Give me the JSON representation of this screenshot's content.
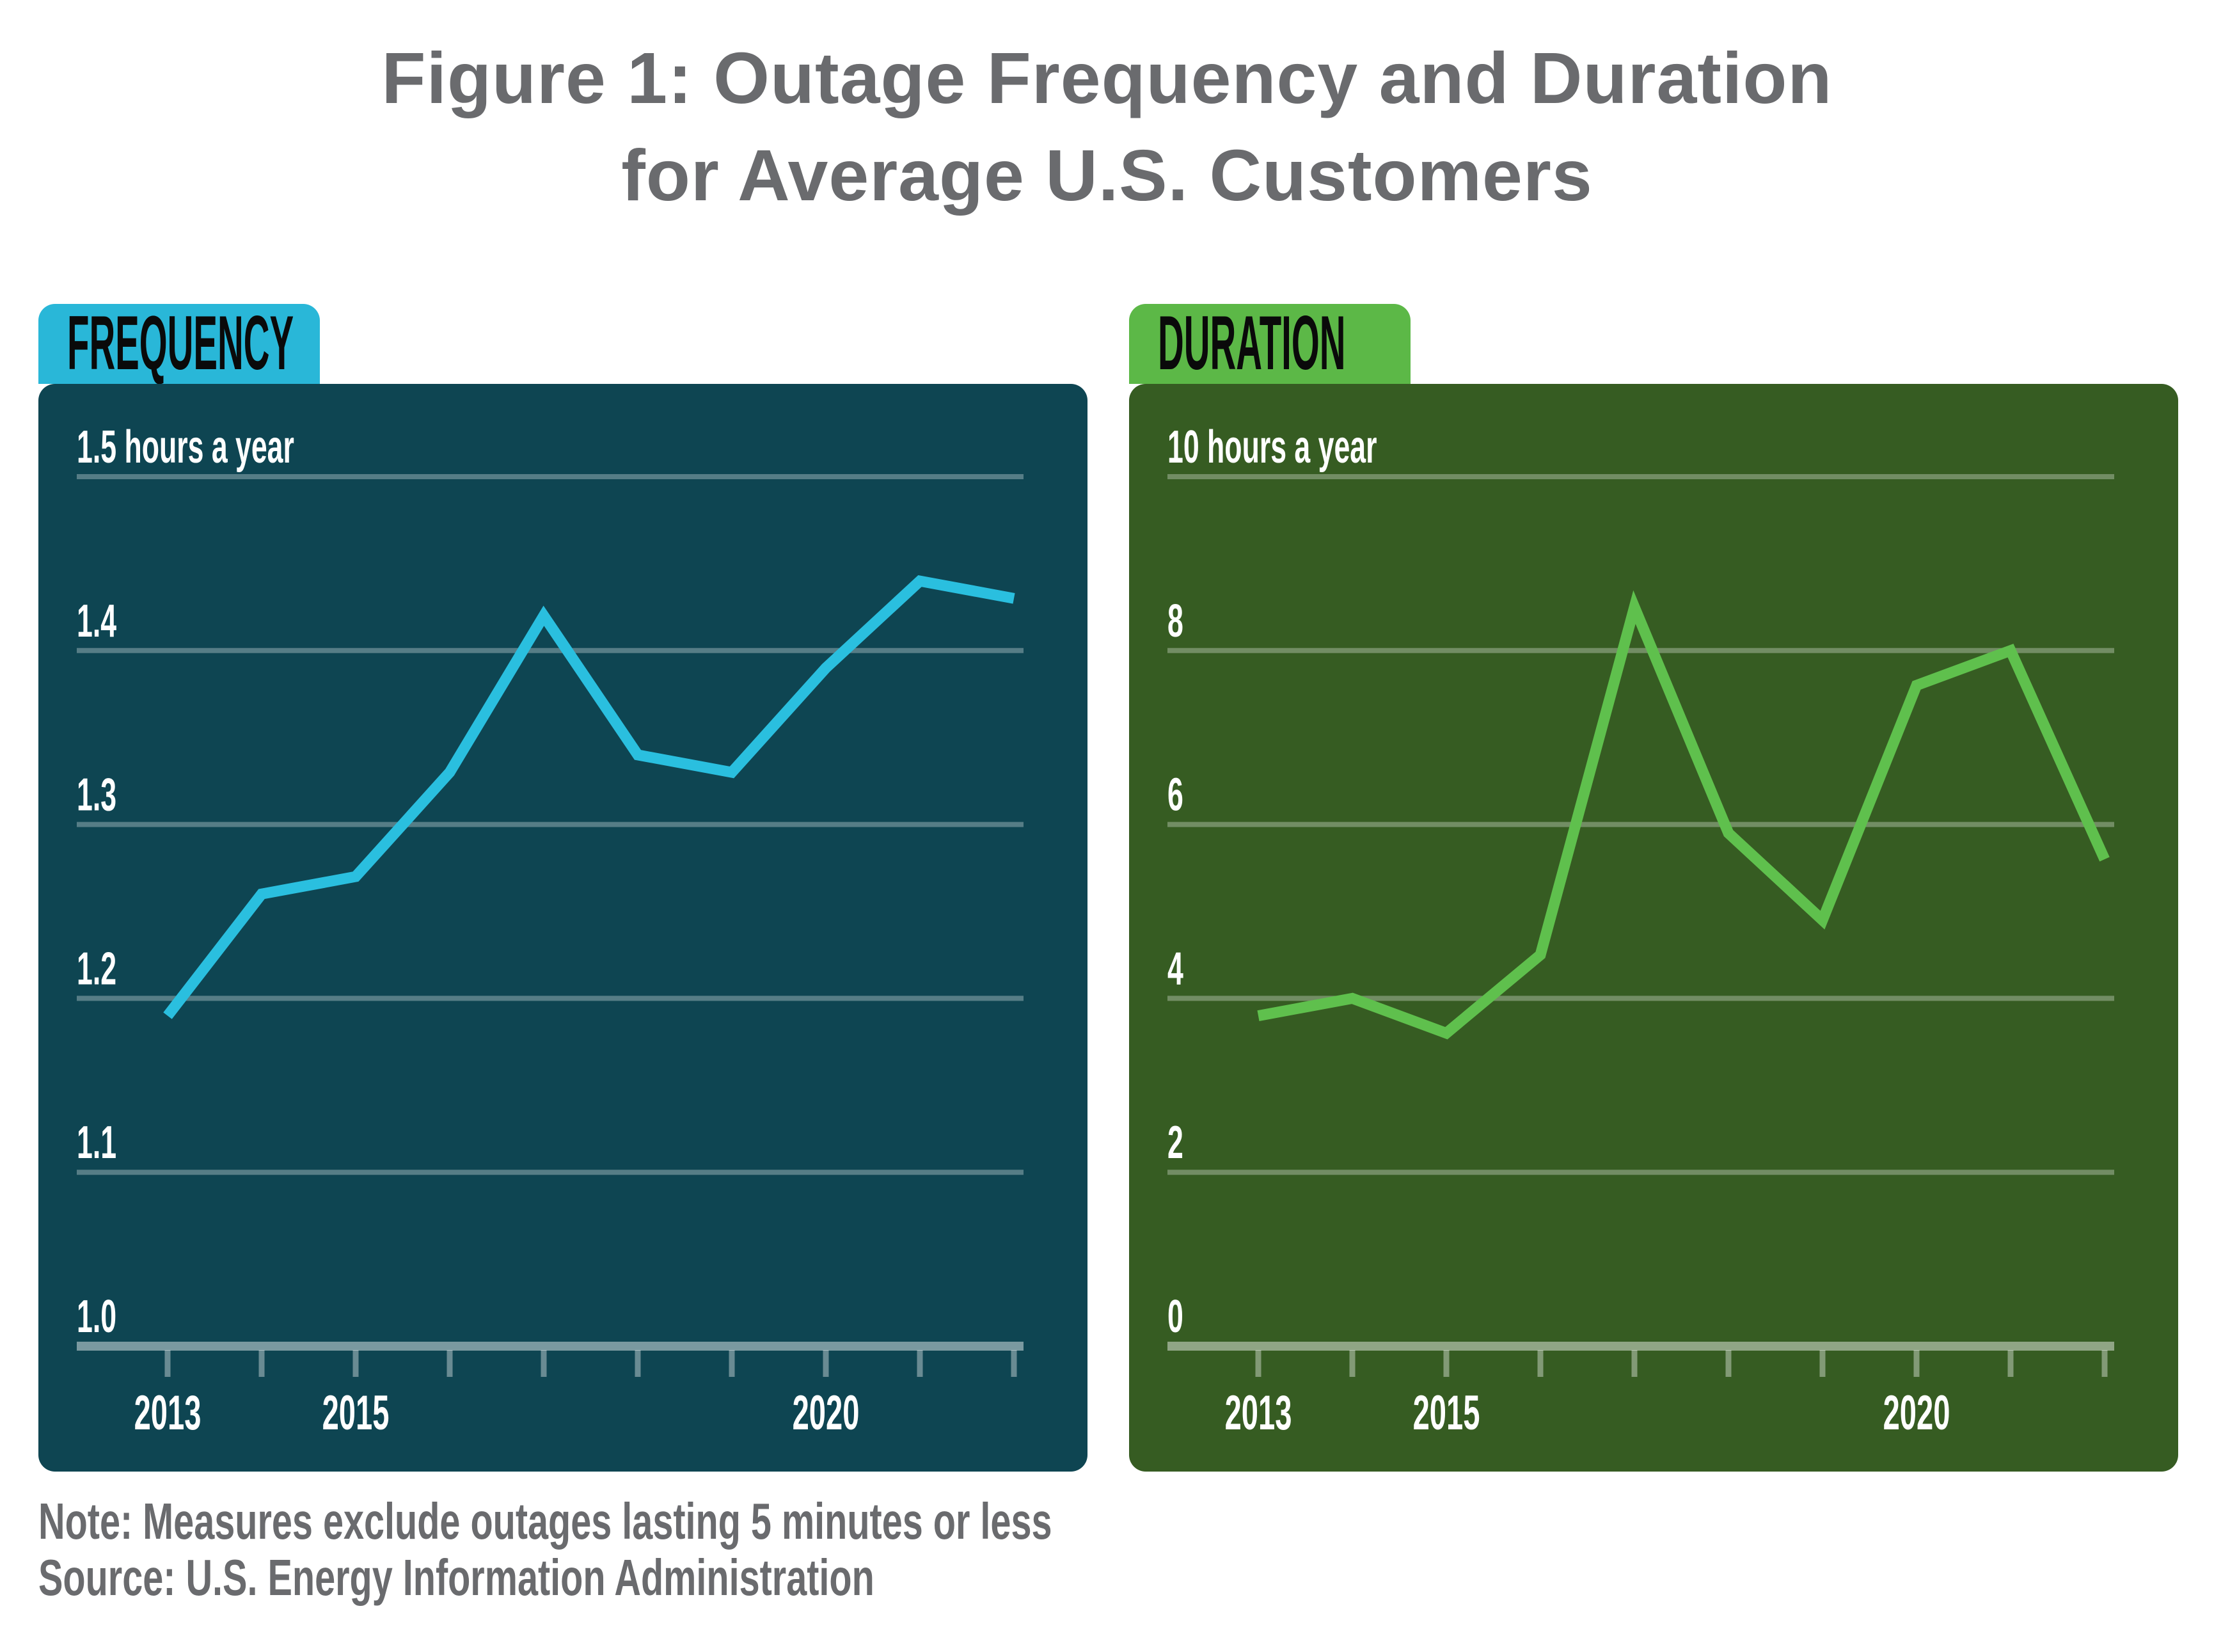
{
  "title": {
    "line1": "Figure 1: Outage Frequency and Duration",
    "line2": "for Average U.S. Customers"
  },
  "footer": {
    "note": "Note: Measures exclude outages lasting 5 minutes or less",
    "source": "Source: U.S. Energy Information Administration"
  },
  "colors": {
    "title_gray": "#6a6b6e",
    "footer_gray": "#6a6b6e",
    "background": "#ffffff",
    "grid_line": "rgba(255,255,255,0.30)",
    "axis_line": "rgba(255,255,255,0.45)",
    "tick_mark": "rgba(255,255,255,0.38)",
    "label_white": "#ffffff",
    "tab_text": "#0a0a0a"
  },
  "chart_data": [
    {
      "id": "frequency",
      "type": "line",
      "tab_label": "FREQUENCY",
      "title": "Outage frequency for average U.S. customers",
      "xlabel": "",
      "ylabel": "hours a year",
      "x": [
        2013,
        2014,
        2015,
        2016,
        2017,
        2018,
        2019,
        2020,
        2021,
        2022
      ],
      "values": [
        1.19,
        1.26,
        1.27,
        1.33,
        1.42,
        1.34,
        1.33,
        1.39,
        1.44,
        1.43
      ],
      "ylim": [
        1.0,
        1.5
      ],
      "grid": true,
      "legend": false,
      "yticks": [
        {
          "value": 1.5,
          "label": "1.5 hours a year"
        },
        {
          "value": 1.4,
          "label": "1.4"
        },
        {
          "value": 1.3,
          "label": "1.3"
        },
        {
          "value": 1.2,
          "label": "1.2"
        },
        {
          "value": 1.1,
          "label": "1.1"
        },
        {
          "value": 1.0,
          "label": "1.0"
        }
      ],
      "xticks": [
        {
          "year": 2013,
          "label": "2013"
        },
        {
          "year": 2015,
          "label": "2015"
        },
        {
          "year": 2020,
          "label": "2020"
        }
      ],
      "tab_color": "#29b7d8",
      "panel_color": "#0e4552",
      "line_color": "#2abfdf"
    },
    {
      "id": "duration",
      "type": "line",
      "tab_label": "DURATION",
      "title": "Outage duration for average U.S. customers",
      "xlabel": "",
      "ylabel": "hours a year",
      "x": [
        2013,
        2014,
        2015,
        2016,
        2017,
        2018,
        2019,
        2020,
        2021,
        2022
      ],
      "values": [
        3.8,
        4.0,
        3.6,
        4.5,
        8.5,
        5.9,
        4.9,
        7.6,
        8.0,
        5.6
      ],
      "ylim": [
        0,
        10
      ],
      "grid": true,
      "legend": false,
      "yticks": [
        {
          "value": 10,
          "label": "10 hours a year"
        },
        {
          "value": 8,
          "label": "8"
        },
        {
          "value": 6,
          "label": "6"
        },
        {
          "value": 4,
          "label": "4"
        },
        {
          "value": 2,
          "label": "2"
        },
        {
          "value": 0,
          "label": "0"
        }
      ],
      "xticks": [
        {
          "year": 2013,
          "label": "2013"
        },
        {
          "year": 2015,
          "label": "2015"
        },
        {
          "year": 2020,
          "label": "2020"
        }
      ],
      "tab_color": "#5cb847",
      "panel_color": "#365c22",
      "line_color": "#5fc04d"
    }
  ]
}
